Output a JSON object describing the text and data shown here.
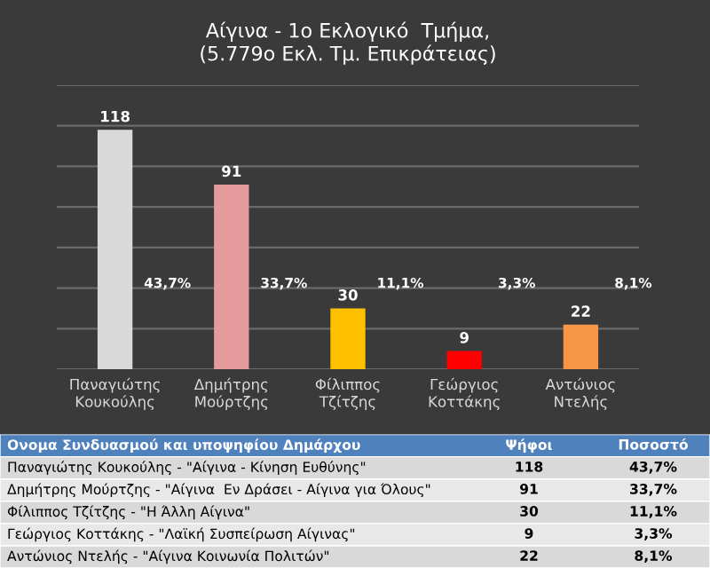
{
  "chart_data": [
    {
      "type": "bar",
      "title": "Αίγινα - 1ο Εκλογικό  Τμήμα,\n(5.779ο Εκλ. Τμ. Επικράτειας)",
      "categories": [
        "Παναγιώτης\nΚουκούλης",
        "Δημήτρης\nΜούρτζης",
        "Φίλιππος\nΤζίτζης",
        "Γεώργιος\nΚοττάκης",
        "Αντώνιος\nΝτελής"
      ],
      "values": [
        118,
        91,
        30,
        9,
        22
      ],
      "colors": [
        "#d9d9d9",
        "#e59a9c",
        "#ffc000",
        "#ff0000",
        "#f79646"
      ],
      "data_labels": true,
      "ylim": [
        0,
        140
      ],
      "yticks": [
        {
          "value": 0,
          "label": null
        },
        {
          "value": 20,
          "label": null
        },
        {
          "value": 40,
          "label": null
        },
        {
          "value": 60,
          "label": null
        },
        {
          "value": 80,
          "label": null
        },
        {
          "value": 100,
          "label": null
        },
        {
          "value": 120,
          "label": null
        },
        {
          "value": 140,
          "label": null
        }
      ],
      "grid": "y",
      "tick_labels": "x",
      "annotations": [
        "43,7%",
        "33,7%",
        "11,1%",
        "3,3%",
        "8,1%"
      ]
    },
    {
      "type": "other",
      "annotations": [
        "Ονομα Συνδυασμού και υποψηφίου Δημάρχου",
        "Ψήφοι",
        "Ποσοστό",
        "Παναγιώτης Κουκούλης - \"Αίγινα - Κίνηση Ευθύνης\"",
        "118",
        "43,7%",
        "Δημήτρης Μούρτζης - \"Αίγινα  Εν Δράσει - Αίγινα για Όλους\"",
        "91",
        "33,7%",
        "Φίλιππος Τζίτζης - \"Η Άλλη Αίγινα\"",
        "30",
        "11,1%",
        "Γεώργιος Κοττάκης - \"Λαϊκή Συσπείρωση Αίγινας\"",
        "9",
        "3,3%",
        "Αντώνιος Ντελής - \"Αίγινα Κοινωνία Πολιτών\"",
        "22",
        "8,1%"
      ]
    }
  ]
}
